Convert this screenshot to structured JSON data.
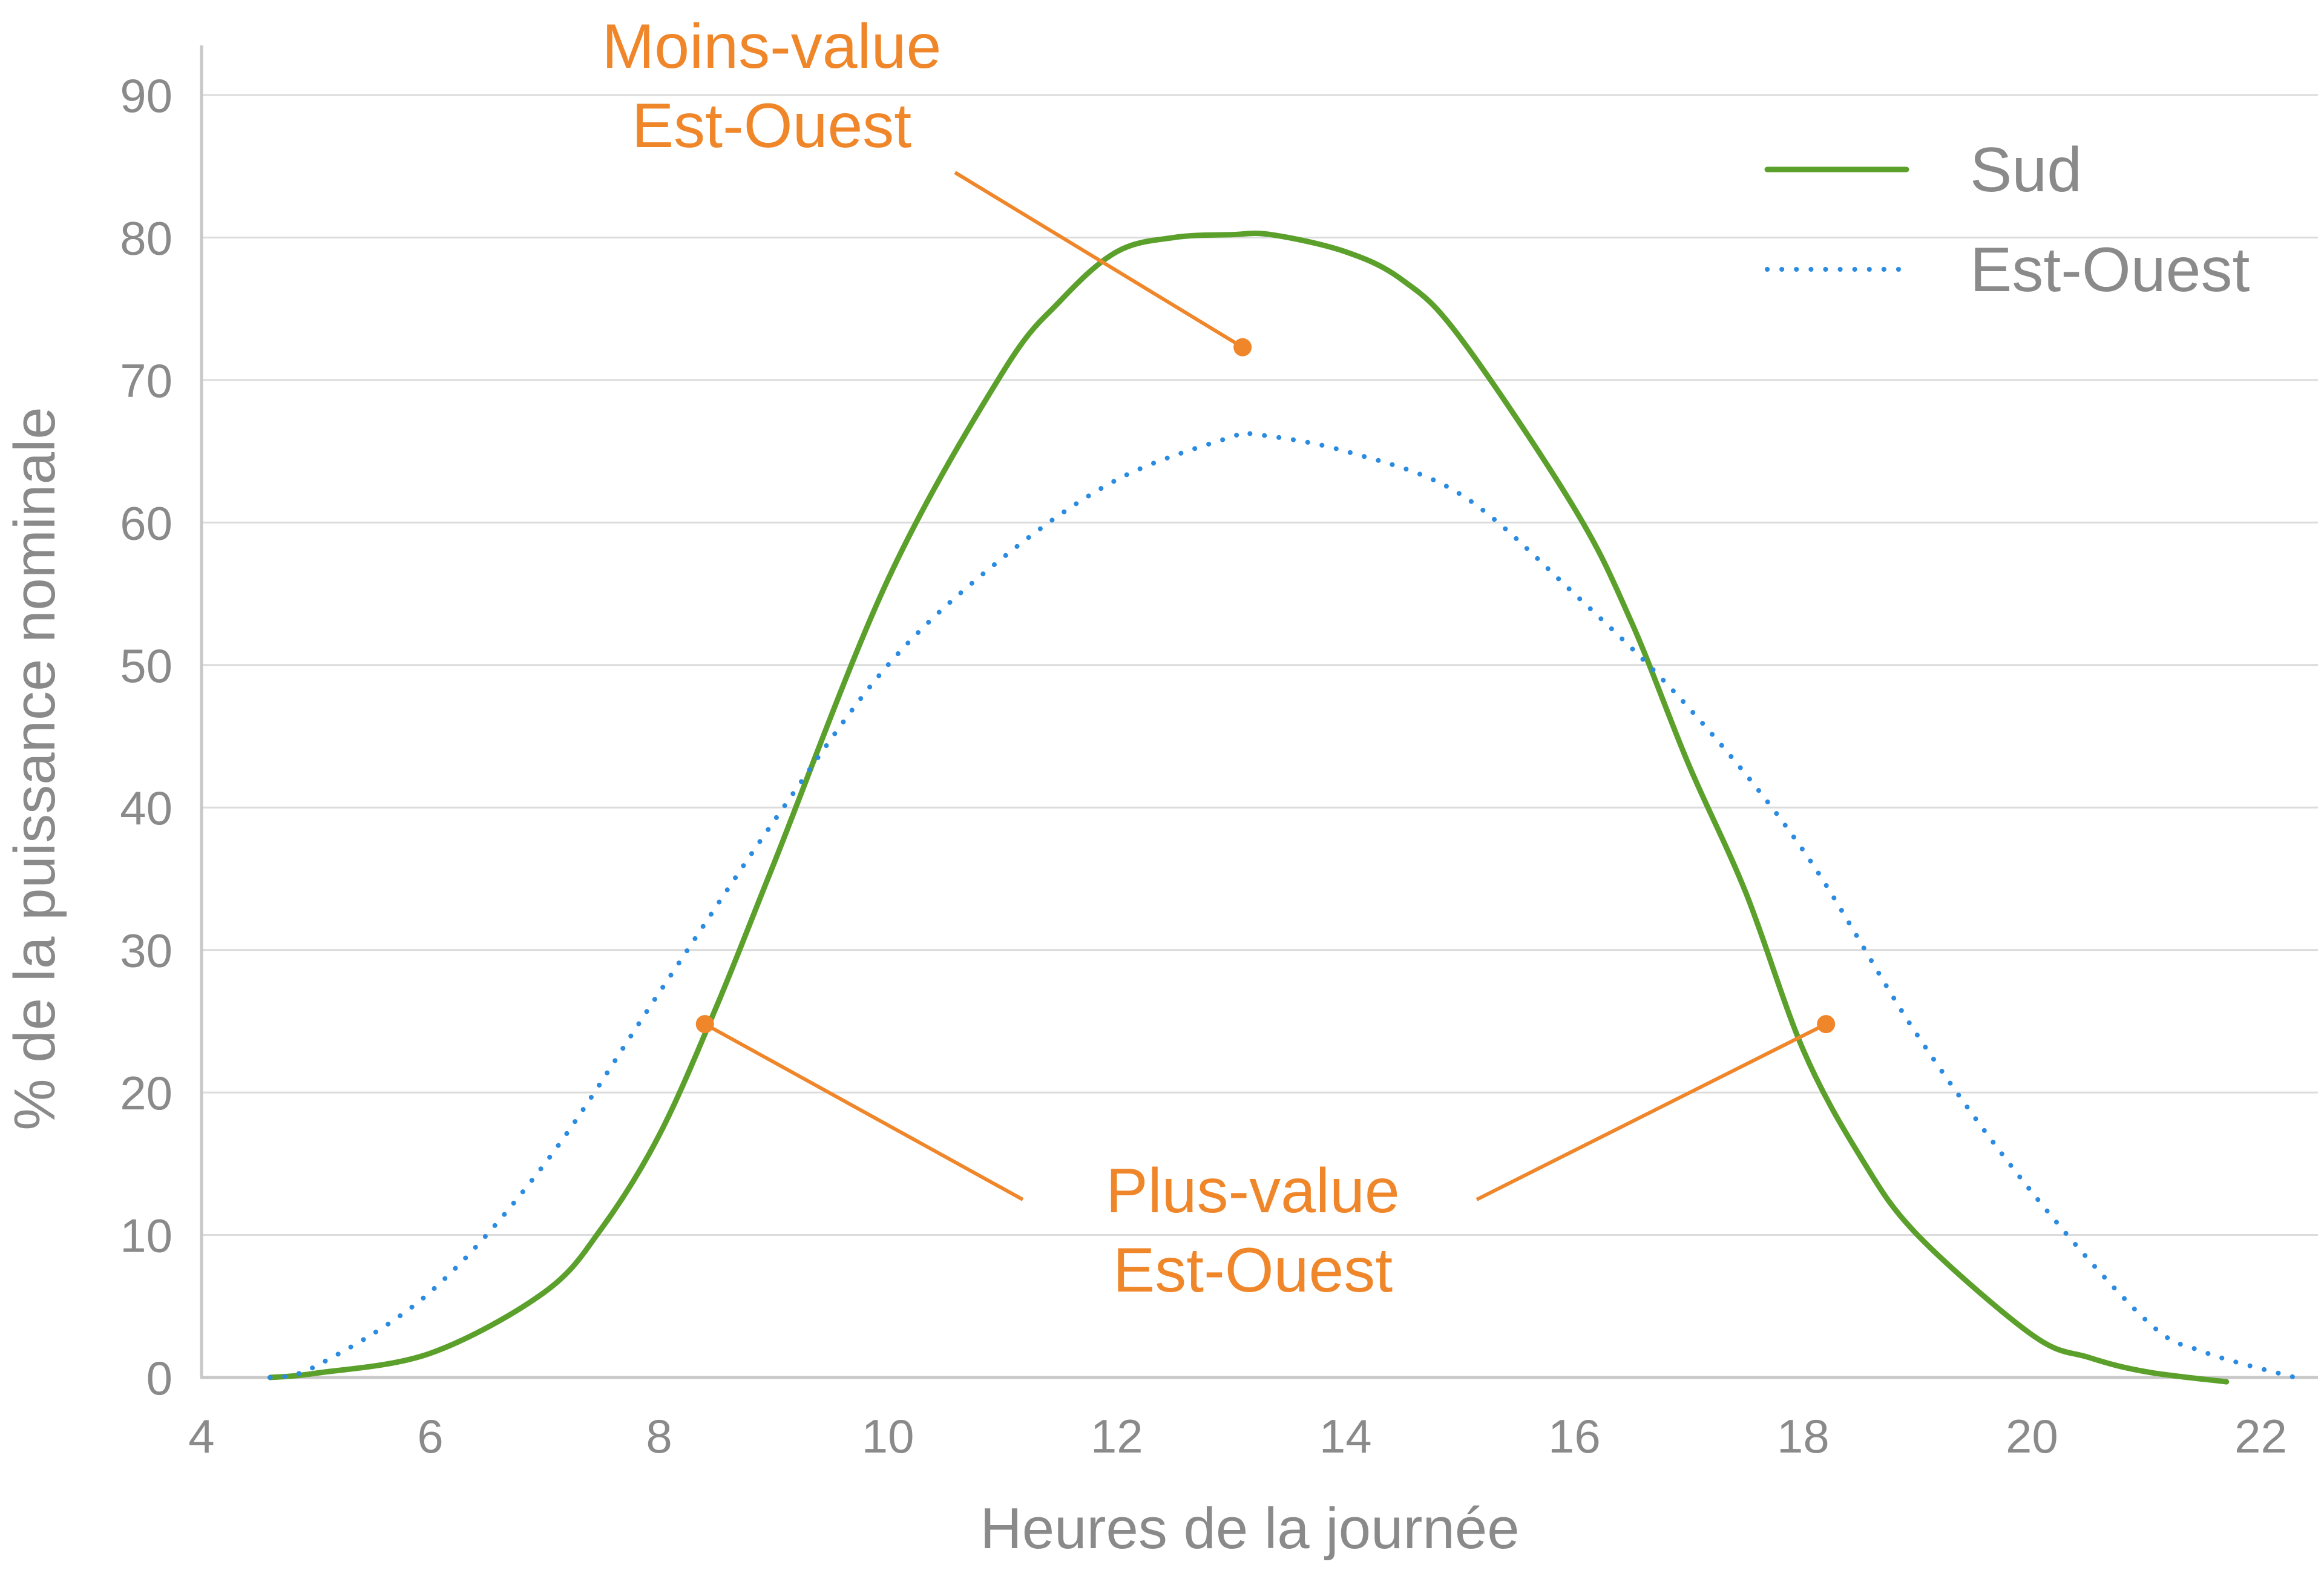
{
  "chart_data": {
    "type": "line",
    "title": "",
    "xlabel": "Heures de la journée",
    "ylabel": "% de la puissance nominale",
    "xlim": [
      4,
      22.5
    ],
    "ylim": [
      0,
      90
    ],
    "x_ticks": [
      4,
      6,
      8,
      10,
      12,
      14,
      16,
      18,
      20,
      22
    ],
    "y_ticks": [
      0,
      10,
      20,
      30,
      40,
      50,
      60,
      70,
      80,
      90
    ],
    "grid": true,
    "legend_position": "top-right",
    "series": [
      {
        "name": "Sud",
        "style": "solid",
        "color": "#5ca02c",
        "x": [
          4.6,
          5.0,
          6.0,
          7.0,
          7.5,
          8.0,
          8.5,
          9.0,
          10.0,
          11.0,
          11.5,
          12.0,
          12.5,
          13.0,
          13.35,
          14.0,
          14.5,
          15.0,
          16.0,
          16.5,
          17.0,
          17.5,
          18.0,
          18.5,
          19.0,
          20.0,
          20.5,
          21.0,
          21.7
        ],
        "y": [
          0,
          0.3,
          1.7,
          6,
          10.5,
          17,
          26,
          36,
          56,
          70.5,
          75.5,
          79,
          80,
          80.2,
          80.2,
          79,
          77,
          73,
          61,
          53,
          43,
          34,
          23,
          15.5,
          10,
          3,
          1.4,
          0.4,
          -0.3
        ]
      },
      {
        "name": "Est-Ouest",
        "style": "dotted",
        "color": "#2b8be0",
        "x": [
          4.6,
          5.0,
          6.0,
          7.0,
          8.0,
          9.0,
          10.0,
          11.0,
          12.0,
          13.0,
          13.2,
          14.0,
          15.0,
          16.0,
          17.0,
          18.0,
          19.0,
          20.0,
          21.0,
          21.5,
          22.3
        ],
        "y": [
          0,
          0.8,
          6,
          15,
          27,
          39,
          50,
          57.5,
          63,
          66,
          66.2,
          65,
          62,
          55,
          47,
          37,
          24,
          13,
          4,
          1.8,
          0
        ]
      }
    ],
    "annotations": [
      {
        "text_line1": "Moins-value",
        "text_line2": "Est-Ouest",
        "pointer": [
          13.1,
          72.3
        ]
      },
      {
        "text_line1": "Plus-value",
        "text_line2": "Est-Ouest",
        "pointers": [
          [
            8.4,
            24.8
          ],
          [
            18.2,
            24.8
          ]
        ]
      }
    ]
  }
}
